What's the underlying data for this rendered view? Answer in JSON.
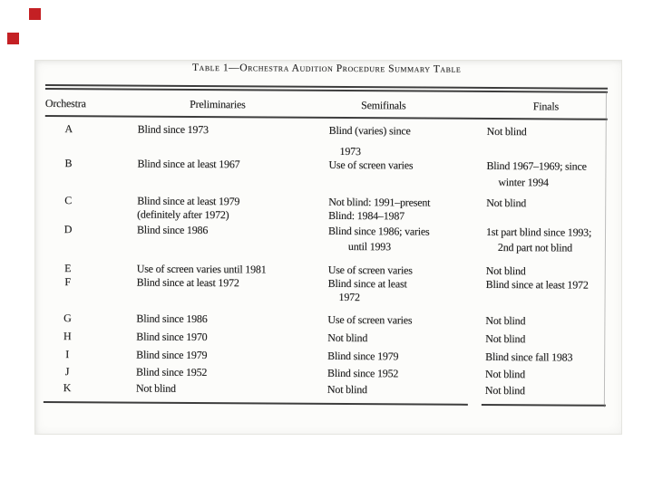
{
  "title": "Table 1—Orchestra Audition Procedure Summary Table",
  "decorations": {
    "square_color": "#c42024"
  },
  "table": {
    "headers": [
      "Orchestra",
      "Preliminaries",
      "Semifinals",
      "Finals"
    ],
    "rows": [
      {
        "orchestra": "A",
        "preliminaries": [
          "Blind since 1973"
        ],
        "semifinals": [
          "Blind (varies) since",
          "1973"
        ],
        "finals": [
          "Not blind"
        ]
      },
      {
        "orchestra": "B",
        "preliminaries": [
          "Blind since at least 1967"
        ],
        "semifinals": [
          "Use of screen varies"
        ],
        "finals": [
          "Blind 1967–1969; since",
          "winter 1994"
        ]
      },
      {
        "orchestra": "C",
        "preliminaries": [
          "Blind since at least 1979",
          "(definitely after 1972)"
        ],
        "semifinals": [
          "Not blind: 1991–present",
          "Blind: 1984–1987"
        ],
        "finals": [
          "Not blind"
        ]
      },
      {
        "orchestra": "D",
        "preliminaries": [
          "Blind since 1986"
        ],
        "semifinals": [
          "Blind since 1986; varies",
          "until 1993"
        ],
        "finals": [
          "1st part blind since 1993;",
          "2nd part not blind"
        ]
      },
      {
        "orchestra": "E",
        "preliminaries": [
          "Use of screen varies until 1981"
        ],
        "semifinals": [
          "Use of screen varies"
        ],
        "finals": [
          "Not blind"
        ]
      },
      {
        "orchestra": "F",
        "preliminaries": [
          "Blind since at least 1972"
        ],
        "semifinals": [
          "Blind since at least",
          "1972"
        ],
        "finals": [
          "Blind since at least 1972"
        ]
      },
      {
        "orchestra": "G",
        "preliminaries": [
          "Blind since 1986"
        ],
        "semifinals": [
          "Use of screen varies"
        ],
        "finals": [
          "Not blind"
        ]
      },
      {
        "orchestra": "H",
        "preliminaries": [
          "Blind since 1970"
        ],
        "semifinals": [
          "Not blind"
        ],
        "finals": [
          "Not blind"
        ]
      },
      {
        "orchestra": "I",
        "preliminaries": [
          "Blind since 1979"
        ],
        "semifinals": [
          "Blind since 1979"
        ],
        "finals": [
          "Blind since fall 1983"
        ]
      },
      {
        "orchestra": "J",
        "preliminaries": [
          "Blind since 1952"
        ],
        "semifinals": [
          "Blind since 1952"
        ],
        "finals": [
          "Not blind"
        ]
      },
      {
        "orchestra": "K",
        "preliminaries": [
          "Not blind"
        ],
        "semifinals": [
          "Not blind"
        ],
        "finals": [
          "Not blind"
        ]
      }
    ]
  }
}
